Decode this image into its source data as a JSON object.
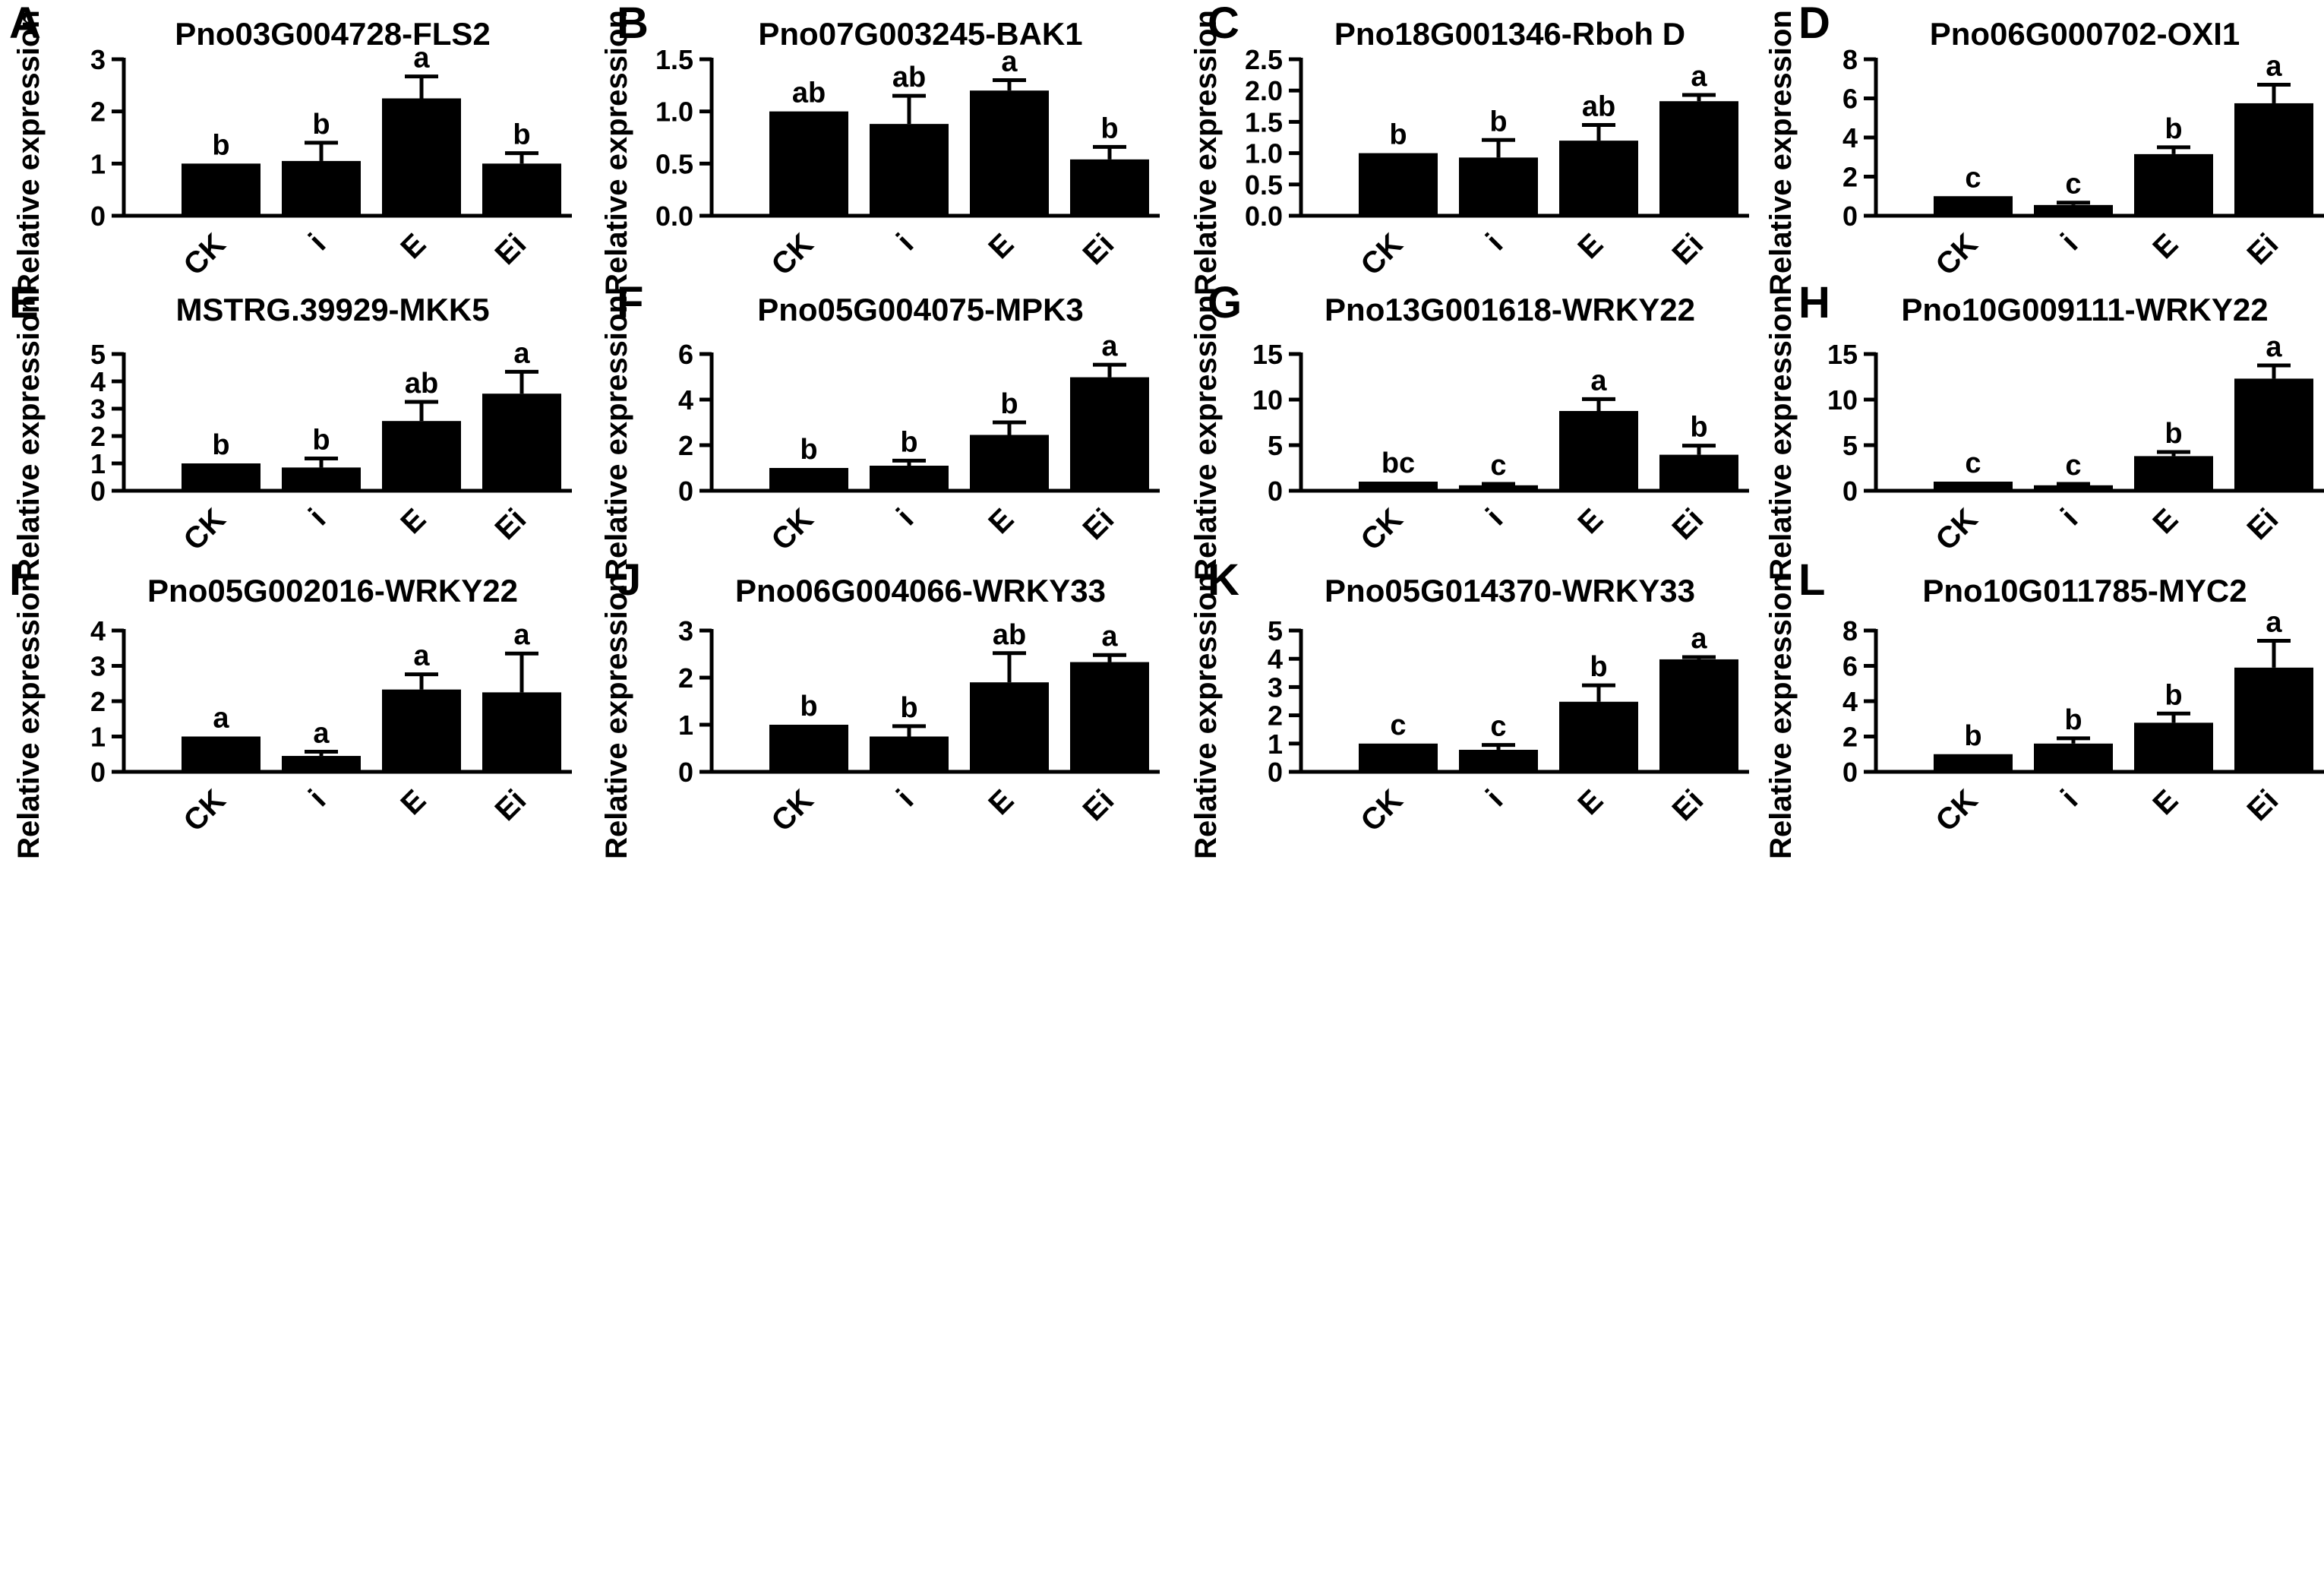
{
  "figure": {
    "categories": [
      "CK",
      "i",
      "E",
      "Ei"
    ],
    "ylabel": "Relative expression",
    "bar_color": "#000000"
  },
  "chart_data": [
    {
      "panel": "A",
      "type": "bar",
      "title": "Pno03G004728-FLS2",
      "ylabel": "Relative expression",
      "categories": [
        "CK",
        "i",
        "E",
        "Ei"
      ],
      "values": [
        1.0,
        1.05,
        2.25,
        1.0
      ],
      "errors": [
        0.0,
        0.35,
        0.42,
        0.2
      ],
      "letters": [
        "b",
        "b",
        "a",
        "b"
      ],
      "ylim": [
        0,
        3
      ],
      "yticks": [
        0,
        1,
        2,
        3
      ],
      "tick_labels": [
        "0",
        "1",
        "2",
        "3"
      ]
    },
    {
      "panel": "B",
      "type": "bar",
      "title": "Pno07G003245-BAK1",
      "ylabel": "Relative expression",
      "categories": [
        "CK",
        "i",
        "E",
        "Ei"
      ],
      "values": [
        1.0,
        0.88,
        1.2,
        0.54
      ],
      "errors": [
        0.0,
        0.27,
        0.1,
        0.12
      ],
      "letters": [
        "ab",
        "ab",
        "a",
        "b"
      ],
      "ylim": [
        0,
        1.5
      ],
      "yticks": [
        0,
        0.5,
        1.0,
        1.5
      ],
      "tick_labels": [
        "0.0",
        "0.5",
        "1.0",
        "1.5"
      ]
    },
    {
      "panel": "C",
      "type": "bar",
      "title": "Pno18G001346-Rboh D",
      "ylabel": "Relative expression",
      "categories": [
        "CK",
        "i",
        "E",
        "Ei"
      ],
      "values": [
        1.0,
        0.93,
        1.2,
        1.83
      ],
      "errors": [
        0.0,
        0.28,
        0.25,
        0.1
      ],
      "letters": [
        "b",
        "b",
        "ab",
        "a"
      ],
      "ylim": [
        0,
        2.5
      ],
      "yticks": [
        0,
        0.5,
        1.0,
        1.5,
        2.0,
        2.5
      ],
      "tick_labels": [
        "0.0",
        "0.5",
        "1.0",
        "1.5",
        "2.0",
        "2.5"
      ]
    },
    {
      "panel": "D",
      "type": "bar",
      "title": "Pno06G000702-OXI1",
      "ylabel": "Relative expression",
      "categories": [
        "CK",
        "i",
        "E",
        "Ei"
      ],
      "values": [
        1.0,
        0.55,
        3.15,
        5.75
      ],
      "errors": [
        0.0,
        0.12,
        0.35,
        0.95
      ],
      "letters": [
        "c",
        "c",
        "b",
        "a"
      ],
      "ylim": [
        0,
        8
      ],
      "yticks": [
        0,
        2,
        4,
        6,
        8
      ],
      "tick_labels": [
        "0",
        "2",
        "4",
        "6",
        "8"
      ]
    },
    {
      "panel": "E",
      "type": "bar",
      "title": "MSTRG.39929-MKK5",
      "ylabel": "Relative expression",
      "categories": [
        "CK",
        "i",
        "E",
        "Ei"
      ],
      "values": [
        1.0,
        0.85,
        2.55,
        3.55
      ],
      "errors": [
        0.0,
        0.33,
        0.7,
        0.8
      ],
      "letters": [
        "b",
        "b",
        "ab",
        "a"
      ],
      "ylim": [
        0,
        5
      ],
      "yticks": [
        0,
        1,
        2,
        3,
        4,
        5
      ],
      "tick_labels": [
        "0",
        "1",
        "2",
        "3",
        "4",
        "5"
      ]
    },
    {
      "panel": "F",
      "type": "bar",
      "title": "Pno05G004075-MPK3",
      "ylabel": "Relative expression",
      "categories": [
        "CK",
        "i",
        "E",
        "Ei"
      ],
      "values": [
        1.0,
        1.1,
        2.45,
        4.98
      ],
      "errors": [
        0.0,
        0.22,
        0.55,
        0.55
      ],
      "letters": [
        "b",
        "b",
        "b",
        "a"
      ],
      "ylim": [
        0,
        6
      ],
      "yticks": [
        0,
        2,
        4,
        6
      ],
      "tick_labels": [
        "0",
        "2",
        "4",
        "6"
      ]
    },
    {
      "panel": "G",
      "type": "bar",
      "title": "Pno13G001618-WRKY22",
      "ylabel": "Relative expression",
      "categories": [
        "CK",
        "i",
        "E",
        "Ei"
      ],
      "values": [
        1.0,
        0.6,
        8.75,
        3.95
      ],
      "errors": [
        0.0,
        0.15,
        1.3,
        1.0
      ],
      "letters": [
        "bc",
        "c",
        "a",
        "b"
      ],
      "ylim": [
        0,
        15
      ],
      "yticks": [
        0,
        5,
        10,
        15
      ],
      "tick_labels": [
        "0",
        "5",
        "10",
        "15"
      ]
    },
    {
      "panel": "H",
      "type": "bar",
      "title": "Pno10G009111-WRKY22",
      "ylabel": "Relative expression",
      "categories": [
        "CK",
        "i",
        "E",
        "Ei"
      ],
      "values": [
        1.0,
        0.6,
        3.8,
        12.3
      ],
      "errors": [
        0.0,
        0.15,
        0.45,
        1.45
      ],
      "letters": [
        "c",
        "c",
        "b",
        "a"
      ],
      "ylim": [
        0,
        15
      ],
      "yticks": [
        0,
        5,
        10,
        15
      ],
      "tick_labels": [
        "0",
        "5",
        "10",
        "15"
      ]
    },
    {
      "panel": "I",
      "type": "bar",
      "title": "Pno05G002016-WRKY22",
      "ylabel": "Relative expression",
      "categories": [
        "CK",
        "i",
        "E",
        "Ei"
      ],
      "values": [
        1.0,
        0.45,
        2.33,
        2.25
      ],
      "errors": [
        0.0,
        0.12,
        0.43,
        1.1
      ],
      "letters": [
        "a",
        "a",
        "a",
        "a"
      ],
      "ylim": [
        0,
        4
      ],
      "yticks": [
        0,
        1,
        2,
        3,
        4
      ],
      "tick_labels": [
        "0",
        "1",
        "2",
        "3",
        "4"
      ]
    },
    {
      "panel": "J",
      "type": "bar",
      "title": "Pno06G004066-WRKY33",
      "ylabel": "Relative expression",
      "categories": [
        "CK",
        "i",
        "E",
        "Ei"
      ],
      "values": [
        1.0,
        0.75,
        1.9,
        2.33
      ],
      "errors": [
        0.0,
        0.22,
        0.62,
        0.15
      ],
      "letters": [
        "b",
        "b",
        "ab",
        "a"
      ],
      "ylim": [
        0,
        3
      ],
      "yticks": [
        0,
        1,
        2,
        3
      ],
      "tick_labels": [
        "0",
        "1",
        "2",
        "3"
      ]
    },
    {
      "panel": "K",
      "type": "bar",
      "title": "Pno05G014370-WRKY33",
      "ylabel": "Relative expression",
      "categories": [
        "CK",
        "i",
        "E",
        "Ei"
      ],
      "values": [
        1.0,
        0.78,
        2.48,
        3.98
      ],
      "errors": [
        0.0,
        0.17,
        0.58,
        0.08
      ],
      "letters": [
        "c",
        "c",
        "b",
        "a"
      ],
      "ylim": [
        0,
        5
      ],
      "yticks": [
        0,
        1,
        2,
        3,
        4,
        5
      ],
      "tick_labels": [
        "0",
        "1",
        "2",
        "3",
        "4",
        "5"
      ]
    },
    {
      "panel": "L",
      "type": "bar",
      "title": "Pno10G011785-MYC2",
      "ylabel": "Relative expression",
      "categories": [
        "CK",
        "i",
        "E",
        "Ei"
      ],
      "values": [
        1.0,
        1.6,
        2.78,
        5.9
      ],
      "errors": [
        0.0,
        0.3,
        0.52,
        1.52
      ],
      "letters": [
        "b",
        "b",
        "b",
        "a"
      ],
      "ylim": [
        0,
        8
      ],
      "yticks": [
        0,
        2,
        4,
        6,
        8
      ],
      "tick_labels": [
        "0",
        "2",
        "4",
        "6",
        "8"
      ]
    }
  ]
}
